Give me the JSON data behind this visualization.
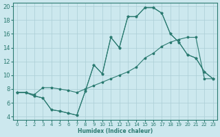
{
  "bg_color": "#cce8ee",
  "grid_color": "#aacdd5",
  "line_color": "#2a7a70",
  "xlim": [
    -0.5,
    23.5
  ],
  "ylim": [
    3.5,
    20.5
  ],
  "xticks": [
    0,
    1,
    2,
    3,
    4,
    5,
    6,
    7,
    8,
    9,
    10,
    11,
    12,
    13,
    14,
    15,
    16,
    17,
    18,
    19,
    20,
    21,
    22,
    23
  ],
  "yticks": [
    4,
    6,
    8,
    10,
    12,
    14,
    16,
    18,
    20
  ],
  "xlabel": "Humidex (Indice chaleur)",
  "series": [
    {
      "x": [
        0,
        1,
        2,
        3,
        4,
        5,
        6,
        7,
        8,
        9,
        10,
        11,
        12,
        13,
        14,
        15,
        16,
        17,
        18,
        19,
        20,
        21,
        22,
        23
      ],
      "y": [
        7.5,
        7.5,
        7.0,
        6.7,
        5.0,
        4.8,
        4.5,
        4.2,
        7.7,
        11.5,
        10.2,
        15.5,
        14.0,
        18.5,
        18.5,
        19.8,
        19.8,
        19.0,
        16.0,
        14.8,
        13.0,
        12.5,
        10.5,
        9.5
      ]
    },
    {
      "x": [
        0,
        1,
        2,
        3,
        4,
        5,
        6,
        7,
        8,
        9,
        10,
        11,
        12,
        13,
        14,
        15,
        16,
        17,
        18,
        19,
        20,
        21,
        22,
        23
      ],
      "y": [
        7.5,
        7.5,
        7.2,
        8.2,
        8.2,
        8.0,
        7.8,
        7.5,
        8.0,
        8.5,
        9.0,
        9.5,
        10.0,
        10.5,
        11.2,
        12.5,
        13.2,
        14.2,
        14.8,
        15.2,
        15.5,
        15.5,
        9.5,
        9.5
      ]
    },
    {
      "x": [
        0,
        1,
        2,
        3,
        4,
        5,
        6,
        7,
        8,
        9,
        10,
        11,
        12,
        13,
        14,
        15,
        16,
        17,
        18,
        19,
        20,
        21,
        22,
        23
      ],
      "y": [
        7.5,
        7.5,
        7.0,
        6.7,
        5.0,
        4.8,
        4.5,
        4.2,
        7.7,
        11.5,
        10.2,
        15.5,
        14.0,
        18.5,
        18.5,
        19.8,
        19.8,
        19.0,
        16.0,
        14.8,
        13.0,
        12.5,
        10.5,
        9.5
      ]
    }
  ]
}
